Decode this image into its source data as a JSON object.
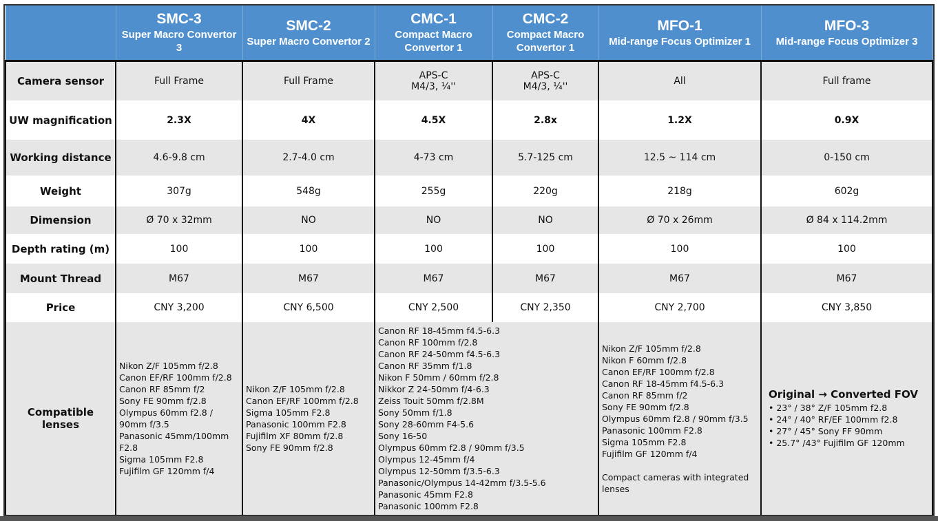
{
  "columns": [
    {
      "code": "SMC-3",
      "name": "Super Macro Convertor 3"
    },
    {
      "code": "SMC-2",
      "name": "Super Macro Convertor 2"
    },
    {
      "code": "CMC-1",
      "name": "Compact Macro Convertor 1"
    },
    {
      "code": "CMC-2",
      "name": "Compact Macro Convertor 1"
    },
    {
      "code": "MFO-1",
      "name": "Mid-range Focus Optimizer 1"
    },
    {
      "code": "MFO-3",
      "name": "Mid-range Focus Optimizer 3"
    }
  ],
  "rows": [
    {
      "label": "Camera sensor",
      "values": [
        "Full Frame",
        "Full Frame",
        "APS-C\nM4/3, ¼''",
        "APS-C\nM4/3, ¼''",
        "All",
        "Full frame"
      ]
    },
    {
      "label": "UW magnification",
      "bold": true,
      "values": [
        "2.3X",
        "4X",
        "4.5X",
        "2.8x",
        "1.2X",
        "0.9X"
      ]
    },
    {
      "label": "Working distance",
      "values": [
        "4.6-9.8 cm",
        "2.7-4.0 cm",
        "4-73 cm",
        "5.7-125 cm",
        "12.5 ~ 114 cm",
        "0-150 cm"
      ]
    },
    {
      "label": "Weight",
      "values": [
        "307g",
        "548g",
        "255g",
        "220g",
        "218g",
        "602g"
      ]
    },
    {
      "label": "Dimension",
      "values": [
        "Ø 70 x 32mm",
        "NO",
        "NO",
        "NO",
        "Ø 70 x 26mm",
        "Ø 84 x 114.2mm"
      ]
    },
    {
      "label": "Depth rating (m)",
      "values": [
        "100",
        "100",
        "100",
        "100",
        "100",
        "100"
      ]
    },
    {
      "label": "Mount Thread",
      "values": [
        "M67",
        "M67",
        "M67",
        "M67",
        "M67",
        "M67"
      ]
    },
    {
      "label": "Price",
      "values": [
        "CNY 3,200",
        "CNY 6,500",
        "CNY 2,500",
        "CNY 2,350",
        "CNY 2,700",
        "CNY 3,850"
      ]
    }
  ],
  "compatible": {
    "label": "Compatible lenses",
    "smc3": [
      "Nikon Z/F 105mm f/2.8",
      "Canon EF/RF 100mm f/2.8",
      "Canon RF 85mm f/2",
      "Sony FE 90mm f/2.8",
      "Olympus 60mm f2.8 /",
      "90mm f/3.5",
      "Panasonic 45mm/100mm",
      "F2.8",
      "Sigma 105mm F2.8",
      "Fujifilm GF 120mm f/4"
    ],
    "smc2": [
      "Nikon Z/F 105mm f/2.8",
      "Canon EF/RF 100mm f/2.8",
      "Sigma 105mm F2.8",
      "Panasonic 100mm F2.8",
      "Fujifilm XF 80mm f/2.8",
      "Sony FE 90mm f/2.8"
    ],
    "cmc": [
      "Canon RF 18-45mm f4.5-6.3",
      "Canon RF 100mm f/2.8",
      "Canon RF 24-50mm f4.5-6.3",
      "Canon RF 35mm f/1.8",
      "Nikon F 50mm / 60mm f/2.8",
      "Nikkor Z 24-50mm f/4-6.3",
      "Zeiss Touit 50mm f/2.8M",
      "Sony 50mm f/1.8",
      "Sony 28-60mm F4-5.6",
      "Sony 16-50",
      "Olympus 60mm f2.8 / 90mm f/3.5",
      "Olympus 12-45mm f/4",
      "Olympus 12-50mm f/3.5-6.3",
      "Panasonic/Olympus 14-42mm f/3.5-5.6",
      "Panasonic 45mm F2.8",
      "Panasonic 100mm F2.8"
    ],
    "mfo1": [
      "Nikon Z/F 105mm f/2.8",
      "Nikon F 60mm f/2.8",
      "Canon EF/RF 100mm f/2.8",
      "Canon RF 18-45mm f4.5-6.3",
      "Canon RF 85mm f/2",
      "Sony FE 90mm f/2.8",
      "Olympus 60mm f2.8 / 90mm f/3.5",
      "Panasonic 100mm F2.8",
      "Sigma 105mm F2.8",
      "Fujifilm GF 120mm f/4",
      "",
      "Compact cameras with integrated",
      "lenses"
    ],
    "mfo3_title": "Original → Converted FOV",
    "mfo3": [
      "•   23° / 38°  Z/F 105mm f2.8",
      "•   24° / 40°  RF/EF 100mm f2.8",
      "•   27° / 45°  Sony FF 90mm",
      "•   25.7° /43°  Fujifilm GF 120mm"
    ]
  }
}
